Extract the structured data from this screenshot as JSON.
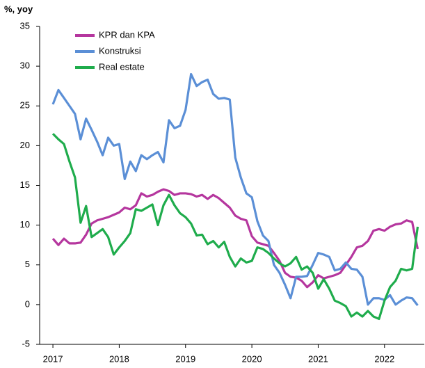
{
  "chart_data": {
    "type": "line",
    "y_label": "%, yoy",
    "x": [
      2017,
      2017.083,
      2017.167,
      2017.25,
      2017.333,
      2017.417,
      2017.5,
      2017.583,
      2017.667,
      2017.75,
      2017.833,
      2017.917,
      2018,
      2018.083,
      2018.167,
      2018.25,
      2018.333,
      2018.417,
      2018.5,
      2018.583,
      2018.667,
      2018.75,
      2018.833,
      2018.917,
      2019,
      2019.083,
      2019.167,
      2019.25,
      2019.333,
      2019.417,
      2019.5,
      2019.583,
      2019.667,
      2019.75,
      2019.833,
      2019.917,
      2020,
      2020.083,
      2020.167,
      2020.25,
      2020.333,
      2020.417,
      2020.5,
      2020.583,
      2020.667,
      2020.75,
      2020.833,
      2020.917,
      2021,
      2021.083,
      2021.167,
      2021.25,
      2021.333,
      2021.417,
      2021.5,
      2021.583,
      2021.667,
      2021.75,
      2021.833,
      2021.917,
      2022,
      2022.083,
      2022.167,
      2022.25,
      2022.333,
      2022.417,
      2022.5
    ],
    "series": [
      {
        "name": "KPR dan KPA",
        "color": "#b5369e",
        "values": [
          8.3,
          7.5,
          8.3,
          7.7,
          7.7,
          7.8,
          8.8,
          10.2,
          10.6,
          10.8,
          11.0,
          11.3,
          11.6,
          12.2,
          12.0,
          12.5,
          14.0,
          13.6,
          13.8,
          14.2,
          14.5,
          14.3,
          13.8,
          14.0,
          14.0,
          13.9,
          13.6,
          13.8,
          13.3,
          13.8,
          13.4,
          12.8,
          12.2,
          11.2,
          10.8,
          10.6,
          8.6,
          7.8,
          7.6,
          7.4,
          6.5,
          5.5,
          4.0,
          3.5,
          3.4,
          3.0,
          2.2,
          2.8,
          3.7,
          3.3,
          3.5,
          3.7,
          4.0,
          5.0,
          6.0,
          7.2,
          7.4,
          8.0,
          9.3,
          9.5,
          9.3,
          9.8,
          10.1,
          10.2,
          10.6,
          10.4,
          7.0
        ]
      },
      {
        "name": "Konstruksi",
        "color": "#5b8fd6",
        "values": [
          25.2,
          27.0,
          26.0,
          25.0,
          24.0,
          20.8,
          23.4,
          22.0,
          20.5,
          18.8,
          21.0,
          20.0,
          20.2,
          15.8,
          18.0,
          16.8,
          18.8,
          18.3,
          18.8,
          19.2,
          17.9,
          23.2,
          22.2,
          22.5,
          24.5,
          29.0,
          27.5,
          28.0,
          28.3,
          26.5,
          25.9,
          26.0,
          25.8,
          18.5,
          16.0,
          14.0,
          13.5,
          10.5,
          8.7,
          8.0,
          5.0,
          4.0,
          2.5,
          0.8,
          3.5,
          3.5,
          3.6,
          5.0,
          6.5,
          6.3,
          6.0,
          4.3,
          4.5,
          5.3,
          4.5,
          4.4,
          3.5,
          0,
          0.8,
          0.8,
          0.6,
          1.2,
          0,
          0.5,
          0.9,
          0.8,
          -0.1
        ]
      },
      {
        "name": "Real estate",
        "color": "#1fac4c",
        "values": [
          21.5,
          20.8,
          20.2,
          18.0,
          16.0,
          10.3,
          12.4,
          8.5,
          9.0,
          9.5,
          8.5,
          6.3,
          7.2,
          8.0,
          9.0,
          12.0,
          11.8,
          12.2,
          12.6,
          10.0,
          12.5,
          13.8,
          12.5,
          11.5,
          11.0,
          10.2,
          8.7,
          8.8,
          7.6,
          8.0,
          7.2,
          7.9,
          6.0,
          4.8,
          5.8,
          5.3,
          5.5,
          7.2,
          7.0,
          6.5,
          5.8,
          5.2,
          4.8,
          5.2,
          6.0,
          4.4,
          4.8,
          4.0,
          2.0,
          3.2,
          2.0,
          0.5,
          0.2,
          -0.2,
          -1.5,
          -1.0,
          -1.5,
          -0.8,
          -1.5,
          -1.8,
          0.5,
          2.2,
          3.0,
          4.5,
          4.3,
          4.5,
          9.8
        ]
      }
    ],
    "xlim": [
      2016.8,
      2022.6
    ],
    "xticks": [
      2017,
      2018,
      2019,
      2020,
      2021,
      2022
    ],
    "ylim": [
      -5,
      35
    ],
    "yticks": [
      -5,
      0,
      5,
      10,
      15,
      20,
      25,
      30,
      35
    ],
    "legend": "top-left"
  }
}
